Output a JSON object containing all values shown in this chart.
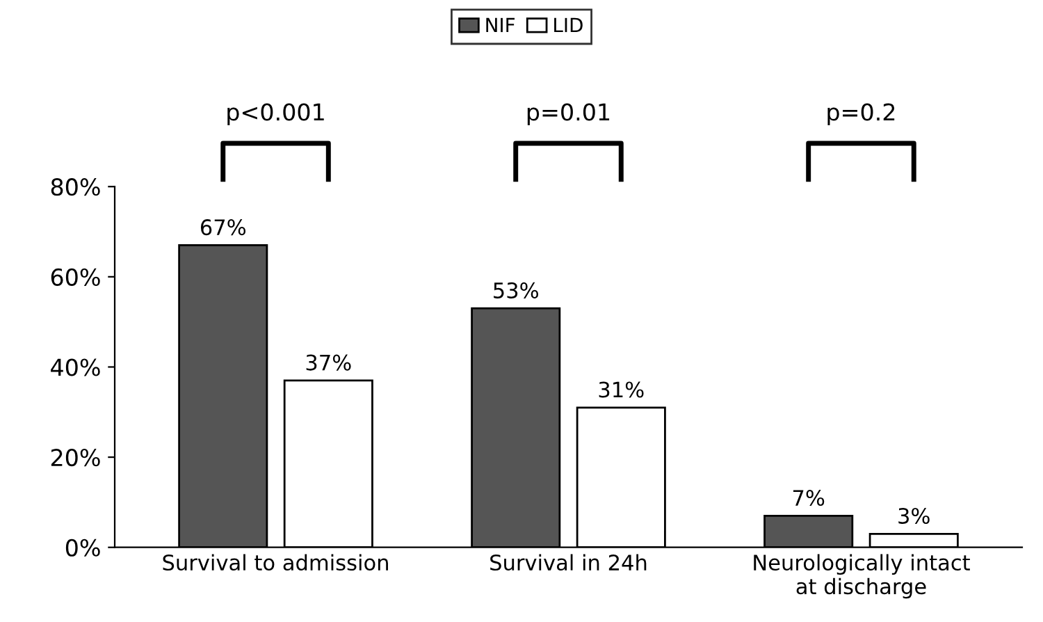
{
  "chart_data": {
    "type": "bar",
    "categories": [
      "Survival to admission",
      "Survival in 24h",
      "Neurologically intact\nat discharge"
    ],
    "series": [
      {
        "name": "NIF",
        "color": "#555555",
        "values": [
          67,
          53,
          7
        ],
        "value_labels": [
          "67%",
          "53%",
          "7%"
        ]
      },
      {
        "name": "LID",
        "color": "#ffffff",
        "values": [
          37,
          31,
          3
        ],
        "value_labels": [
          "37%",
          "31%",
          "3%"
        ]
      }
    ],
    "ylim": [
      0,
      80
    ],
    "yticks": [
      {
        "value": 0,
        "label": "0%"
      },
      {
        "value": 20,
        "label": "20%"
      },
      {
        "value": 40,
        "label": "40%"
      },
      {
        "value": 60,
        "label": "60%"
      },
      {
        "value": 80,
        "label": "80%"
      }
    ],
    "annotations": [
      "p<0.001",
      "p=0.01",
      "p=0.2"
    ],
    "legend": "top",
    "grid": false
  }
}
